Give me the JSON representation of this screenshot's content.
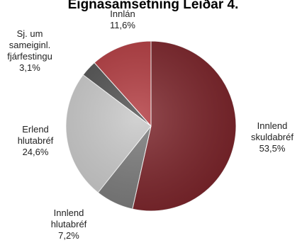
{
  "chart_data": {
    "type": "pie",
    "title": "Eignasamsetning Leiðar 4.",
    "start": "top",
    "direction": "clockwise",
    "slices": [
      {
        "lines": [
          "Innlend",
          "skuldabréf"
        ],
        "percent_label": "53,5%",
        "value": 53.5,
        "color": "#7b2329"
      },
      {
        "lines": [
          "Innlend",
          "hlutabréf"
        ],
        "percent_label": "7,2%",
        "value": 7.2,
        "color": "#7a7a7a"
      },
      {
        "lines": [
          "Erlend",
          "hlutabréf"
        ],
        "percent_label": "24,6%",
        "value": 24.6,
        "color": "#c8c8c8"
      },
      {
        "lines": [
          "Sj. um",
          "sameiginl.",
          "fjárfestingu"
        ],
        "percent_label": "3,1%",
        "value": 3.1,
        "color": "#505050"
      },
      {
        "lines": [
          "Innlán"
        ],
        "percent_label": "11,6%",
        "value": 11.6,
        "color": "#b23a3f"
      }
    ]
  }
}
